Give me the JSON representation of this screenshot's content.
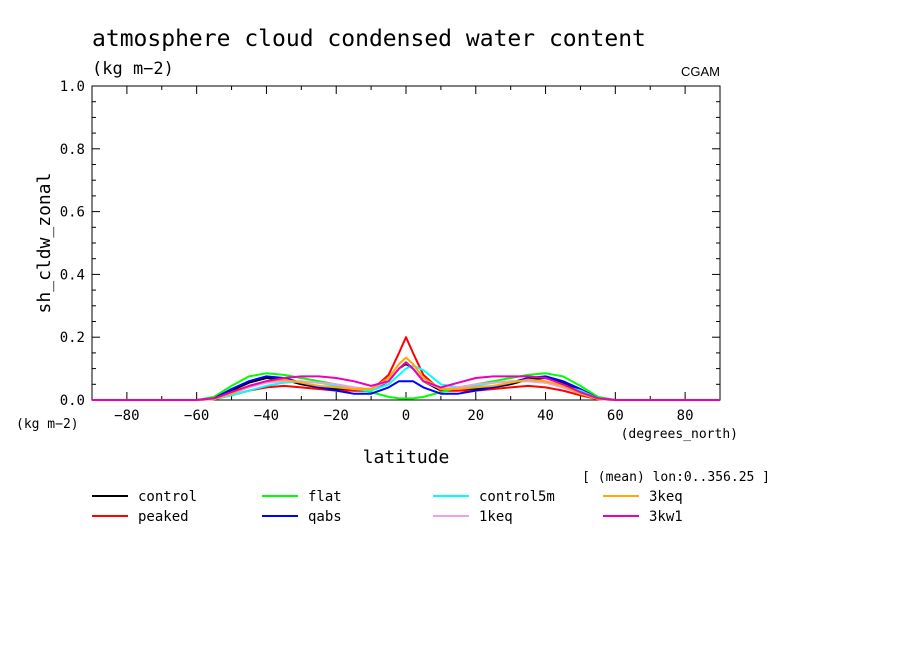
{
  "title": "atmosphere cloud condensed water content",
  "units": "(kg m−2)",
  "source_label": "CGAM",
  "y_units_label": "(kg m−2)",
  "x_units_label": "(degrees_north)",
  "x_axis_title": "latitude",
  "y_axis_title": "sh_cldw_zonal",
  "region_note": "[ (mean) lon:0..356.25 ]",
  "chart_data": {
    "type": "line",
    "xlim": [
      -90,
      90
    ],
    "ylim": [
      0,
      1.0
    ],
    "x_ticks": [
      -80,
      -60,
      -40,
      -20,
      0,
      20,
      40,
      60,
      80
    ],
    "x_tick_labels": [
      "−80",
      "−60",
      "−40",
      "−20",
      "0",
      "20",
      "40",
      "60",
      "80"
    ],
    "y_ticks": [
      0,
      0.2,
      0.4,
      0.6,
      0.8,
      1.0
    ],
    "y_tick_labels": [
      "0.0",
      "0.2",
      "0.4",
      "0.6",
      "0.8",
      "1.0"
    ],
    "legend_placement": "below",
    "x": [
      -90,
      -80,
      -70,
      -60,
      -55,
      -50,
      -45,
      -40,
      -35,
      -30,
      -25,
      -20,
      -15,
      -10,
      -5,
      -2,
      0,
      2,
      5,
      10,
      15,
      20,
      25,
      30,
      35,
      40,
      45,
      50,
      55,
      60,
      70,
      80,
      90
    ],
    "series": [
      {
        "name": "control",
        "color": "#000000",
        "values": [
          0,
          0,
          0,
          0,
          0.005,
          0.03,
          0.055,
          0.07,
          0.065,
          0.05,
          0.04,
          0.035,
          0.03,
          0.03,
          0.06,
          0.1,
          0.115,
          0.1,
          0.06,
          0.03,
          0.03,
          0.035,
          0.04,
          0.05,
          0.065,
          0.07,
          0.055,
          0.03,
          0.005,
          0,
          0,
          0,
          0
        ]
      },
      {
        "name": "peaked",
        "color": "#ff0000",
        "values": [
          0,
          0,
          0,
          0,
          0.003,
          0.015,
          0.03,
          0.04,
          0.045,
          0.04,
          0.035,
          0.03,
          0.03,
          0.03,
          0.08,
          0.15,
          0.2,
          0.15,
          0.08,
          0.03,
          0.03,
          0.03,
          0.035,
          0.04,
          0.045,
          0.04,
          0.03,
          0.015,
          0.003,
          0,
          0,
          0,
          0
        ]
      },
      {
        "name": "flat",
        "color": "#00ff00",
        "values": [
          0,
          0,
          0,
          0,
          0.01,
          0.045,
          0.075,
          0.085,
          0.08,
          0.07,
          0.06,
          0.05,
          0.04,
          0.025,
          0.01,
          0.005,
          0.005,
          0.005,
          0.01,
          0.025,
          0.04,
          0.05,
          0.06,
          0.07,
          0.08,
          0.085,
          0.075,
          0.045,
          0.01,
          0,
          0,
          0,
          0
        ]
      },
      {
        "name": "qabs",
        "color": "#0000ff",
        "values": [
          0,
          0,
          0,
          0,
          0.005,
          0.035,
          0.06,
          0.075,
          0.07,
          0.055,
          0.04,
          0.03,
          0.02,
          0.02,
          0.04,
          0.06,
          0.06,
          0.06,
          0.04,
          0.02,
          0.02,
          0.03,
          0.04,
          0.055,
          0.07,
          0.075,
          0.06,
          0.035,
          0.005,
          0,
          0,
          0,
          0
        ]
      },
      {
        "name": "control5m",
        "color": "#00ffff",
        "values": [
          0,
          0,
          0,
          0,
          0.003,
          0.015,
          0.03,
          0.045,
          0.055,
          0.06,
          0.055,
          0.045,
          0.035,
          0.03,
          0.05,
          0.08,
          0.1,
          0.11,
          0.095,
          0.05,
          0.04,
          0.045,
          0.055,
          0.06,
          0.06,
          0.055,
          0.045,
          0.03,
          0.005,
          0,
          0,
          0,
          0
        ]
      },
      {
        "name": "1keq",
        "color": "#f0a0e0",
        "values": [
          0,
          0,
          0,
          0,
          0.003,
          0.02,
          0.04,
          0.055,
          0.06,
          0.06,
          0.055,
          0.05,
          0.04,
          0.035,
          0.06,
          0.1,
          0.12,
          0.1,
          0.06,
          0.035,
          0.04,
          0.05,
          0.055,
          0.06,
          0.06,
          0.055,
          0.04,
          0.02,
          0.003,
          0,
          0,
          0,
          0
        ]
      },
      {
        "name": "3keq",
        "color": "#ffaa00",
        "values": [
          0,
          0,
          0,
          0,
          0.003,
          0.02,
          0.045,
          0.06,
          0.065,
          0.055,
          0.045,
          0.04,
          0.035,
          0.035,
          0.07,
          0.115,
          0.135,
          0.115,
          0.07,
          0.035,
          0.035,
          0.04,
          0.045,
          0.055,
          0.065,
          0.06,
          0.045,
          0.02,
          0.003,
          0,
          0,
          0,
          0
        ]
      },
      {
        "name": "3kw1",
        "color": "#ee00bb",
        "values": [
          0,
          0,
          0,
          0,
          0.005,
          0.025,
          0.045,
          0.06,
          0.07,
          0.075,
          0.075,
          0.07,
          0.06,
          0.045,
          0.06,
          0.1,
          0.12,
          0.1,
          0.06,
          0.04,
          0.055,
          0.07,
          0.075,
          0.075,
          0.075,
          0.07,
          0.05,
          0.025,
          0.005,
          0,
          0,
          0,
          0
        ]
      }
    ]
  },
  "legend": {
    "items": [
      {
        "label": "control",
        "color": "#000000"
      },
      {
        "label": "flat",
        "color": "#00ff00"
      },
      {
        "label": "control5m",
        "color": "#00ffff"
      },
      {
        "label": "3keq",
        "color": "#ffaa00"
      },
      {
        "label": "peaked",
        "color": "#ff0000"
      },
      {
        "label": "qabs",
        "color": "#0000ff"
      },
      {
        "label": "1keq",
        "color": "#f0a0e0"
      },
      {
        "label": "3kw1",
        "color": "#ee00bb"
      }
    ]
  }
}
